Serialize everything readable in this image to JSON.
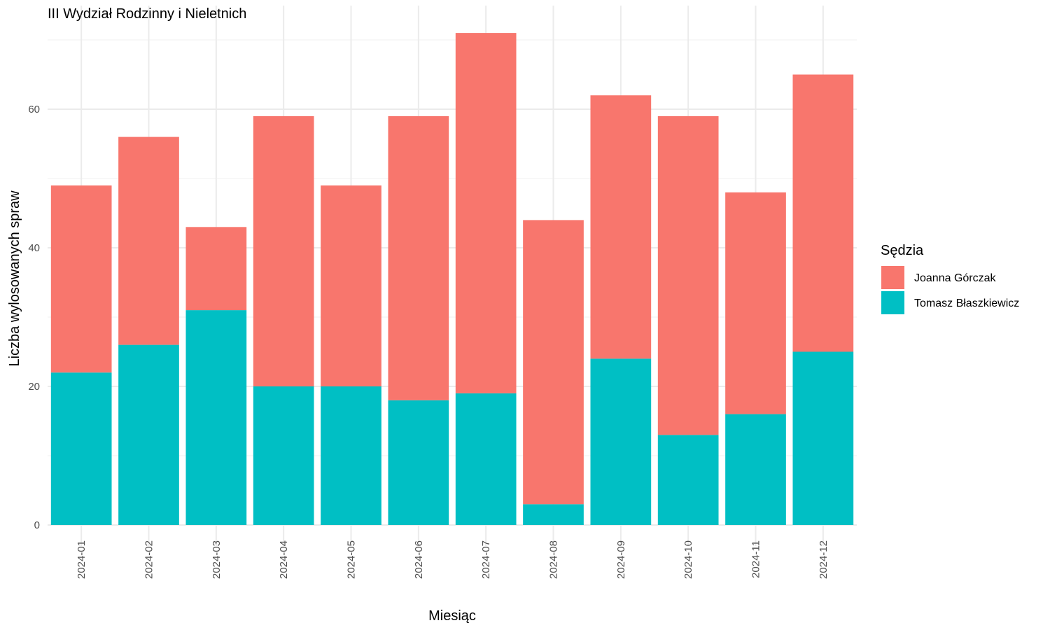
{
  "chart_data": {
    "type": "bar",
    "stacked": true,
    "title": "III Wydział Rodzinny i Nieletnich",
    "xlabel": "Miesiąc",
    "ylabel": "Liczba wylosowanych spraw",
    "ylim": [
      0,
      72
    ],
    "yticks": [
      0,
      20,
      40,
      60
    ],
    "grid": true,
    "legend": {
      "title": "Sędzia",
      "position": "right"
    },
    "categories": [
      "2024-01",
      "2024-02",
      "2024-03",
      "2024-04",
      "2024-05",
      "2024-06",
      "2024-07",
      "2024-08",
      "2024-09",
      "2024-10",
      "2024-11",
      "2024-12"
    ],
    "series": [
      {
        "name": "Tomasz Błaszkiewicz",
        "color": "#00BFC4",
        "values": [
          22,
          26,
          31,
          20,
          20,
          18,
          19,
          3,
          24,
          13,
          16,
          25
        ]
      },
      {
        "name": "Joanna Górczak",
        "color": "#F8766D",
        "values": [
          27,
          30,
          12,
          39,
          29,
          41,
          52,
          41,
          38,
          46,
          32,
          40
        ]
      }
    ],
    "legend_order": [
      "Joanna Górczak",
      "Tomasz Błaszkiewicz"
    ]
  }
}
